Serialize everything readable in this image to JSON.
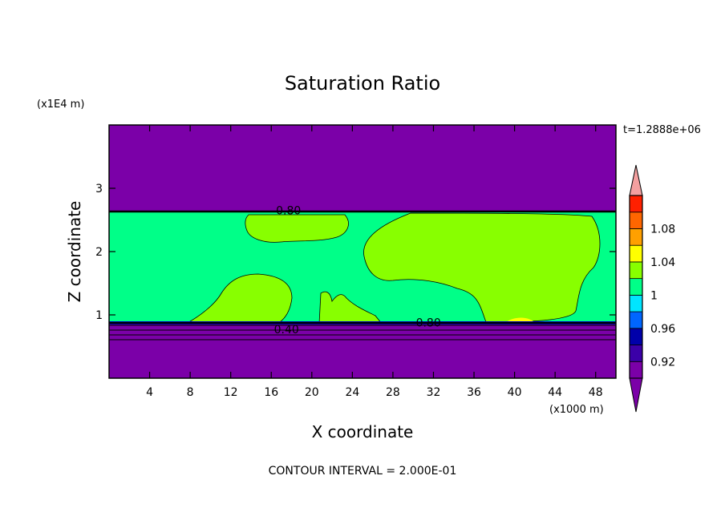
{
  "chart_data": {
    "type": "contour",
    "title": "Saturation Ratio",
    "xlabel": "X coordinate",
    "ylabel": "Z coordinate",
    "x_unit_label": "(x1000 m)",
    "y_unit_label": "(x1E4 m)",
    "time_label": "t=1.2888e+06",
    "footer": "CONTOUR INTERVAL = 2.000E-01",
    "xlim": [
      0,
      50
    ],
    "ylim": [
      0,
      4
    ],
    "x_ticks": [
      4,
      8,
      12,
      16,
      20,
      24,
      28,
      32,
      36,
      40,
      44,
      48
    ],
    "y_ticks": [
      1,
      2,
      3
    ],
    "contour_labels": [
      {
        "text": "0.80",
        "x": 17.7,
        "z": 2.65
      },
      {
        "text": "0.80",
        "x": 31.5,
        "z": 0.88
      },
      {
        "text": "0.40",
        "x": 17.5,
        "z": 0.77
      }
    ],
    "regions": {
      "upper_layer": {
        "z_range": [
          2.65,
          4.0
        ],
        "level": "< 0.92",
        "color": "#7b00a8"
      },
      "cloud_layer": {
        "z_range": [
          0.9,
          2.65
        ],
        "level": "0.96 - 1",
        "color": "#00ff88"
      },
      "lower_layer": {
        "z_range": [
          0.0,
          0.9
        ],
        "level": "< 0.92",
        "color": "#7b00a8"
      }
    },
    "colorbar": {
      "labels": [
        "0.92",
        "0.96",
        "1",
        "1.04",
        "1.08"
      ],
      "levels": [
        0.92,
        0.94,
        0.96,
        0.98,
        1.0,
        1.02,
        1.04,
        1.06,
        1.08,
        1.1
      ],
      "colors": [
        "#7b00a8",
        "#3b00a8",
        "#0000aa",
        "#0066ff",
        "#00e5ff",
        "#00ff88",
        "#88ff00",
        "#ffff00",
        "#ffa000",
        "#ff6600",
        "#ff2000"
      ],
      "under_color": "#7b00a8",
      "over_color": "#f4a0a0"
    }
  }
}
